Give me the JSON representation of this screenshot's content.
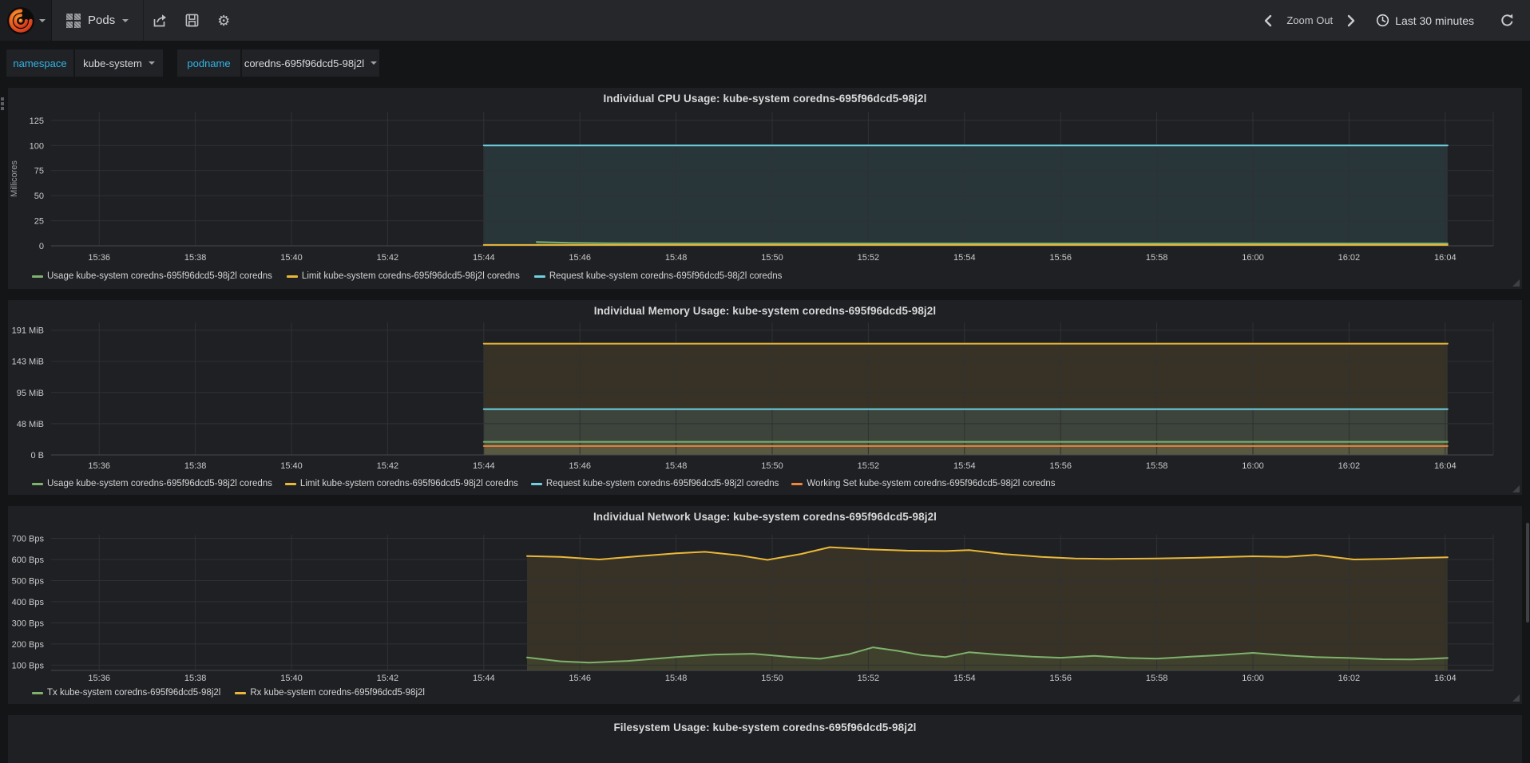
{
  "navbar": {
    "dashboard_title": "Pods",
    "zoom_out_label": "Zoom Out",
    "time_range": "Last 30 minutes",
    "icons": {
      "gear": "⚙"
    }
  },
  "variables": [
    {
      "label": "namespace",
      "value": "kube-system"
    },
    {
      "label": "podname",
      "value": "coredns-695f96dcd5-98j2l"
    }
  ],
  "colors": {
    "green": "#7EB26D",
    "yellow": "#EAB839",
    "cyan": "#6ED0E0",
    "orange": "#EF843C",
    "variable_label_blue": "#33B5E5"
  },
  "chart_data": {
    "time_axis": {
      "xlim": [
        0,
        30
      ],
      "ticks": [
        {
          "t": 1,
          "label": "15:36"
        },
        {
          "t": 3,
          "label": "15:38"
        },
        {
          "t": 5,
          "label": "15:40"
        },
        {
          "t": 7,
          "label": "15:42"
        },
        {
          "t": 9,
          "label": "15:44"
        },
        {
          "t": 11,
          "label": "15:46"
        },
        {
          "t": 13,
          "label": "15:48"
        },
        {
          "t": 15,
          "label": "15:50"
        },
        {
          "t": 17,
          "label": "15:52"
        },
        {
          "t": 19,
          "label": "15:54"
        },
        {
          "t": 21,
          "label": "15:56"
        },
        {
          "t": 23,
          "label": "15:58"
        },
        {
          "t": 25,
          "label": "16:00"
        },
        {
          "t": 27,
          "label": "16:02"
        },
        {
          "t": 29,
          "label": "16:04"
        }
      ]
    },
    "panels": [
      {
        "type": "area",
        "title": "Individual CPU Usage: kube-system coredns-695f96dcd5-98j2l",
        "ylabel": "Millicores",
        "ylim": [
          0,
          133.6
        ],
        "grid": true,
        "legend_position": "bottom",
        "yticks": [
          {
            "v": 0,
            "label": "0"
          },
          {
            "v": 25,
            "label": "25"
          },
          {
            "v": 50,
            "label": "50"
          },
          {
            "v": 75,
            "label": "75"
          },
          {
            "v": 100,
            "label": "100"
          },
          {
            "v": 125,
            "label": "125"
          }
        ],
        "series": [
          {
            "name": "Usage kube-system coredns-695f96dcd5-98j2l coredns",
            "color": "green",
            "fill": true,
            "points": [
              [
                10.1,
                3.8
              ],
              [
                10.8,
                3.0
              ],
              [
                11.6,
                2.6
              ],
              [
                13,
                2.5
              ],
              [
                16,
                2.5
              ],
              [
                20,
                2.4
              ],
              [
                24,
                2.5
              ],
              [
                29.05,
                2.4
              ]
            ]
          },
          {
            "name": "Limit kube-system coredns-695f96dcd5-98j2l coredns",
            "color": "yellow",
            "fill": true,
            "points": [
              [
                9,
                0.9
              ],
              [
                29.05,
                0.9
              ]
            ]
          },
          {
            "name": "Request kube-system coredns-695f96dcd5-98j2l coredns",
            "color": "cyan",
            "fill": true,
            "points": [
              [
                9,
                100
              ],
              [
                29.05,
                100
              ]
            ]
          }
        ]
      },
      {
        "type": "area",
        "title": "Individual Memory Usage: kube-system coredns-695f96dcd5-98j2l",
        "ylabel": "",
        "ylim": [
          0,
          202.5
        ],
        "grid": true,
        "legend_position": "bottom",
        "yticks": [
          {
            "v": 0,
            "label": "0 B"
          },
          {
            "v": 47.7,
            "label": "48 MiB"
          },
          {
            "v": 95.4,
            "label": "95 MiB"
          },
          {
            "v": 143.1,
            "label": "143 MiB"
          },
          {
            "v": 190.7,
            "label": "191 MiB"
          }
        ],
        "series": [
          {
            "name": "Usage kube-system coredns-695f96dcd5-98j2l coredns",
            "color": "green",
            "fill": true,
            "points": [
              [
                9,
                20
              ],
              [
                29.05,
                20
              ]
            ]
          },
          {
            "name": "Limit kube-system coredns-695f96dcd5-98j2l coredns",
            "color": "yellow",
            "fill": true,
            "points": [
              [
                9,
                170
              ],
              [
                29.05,
                170
              ]
            ]
          },
          {
            "name": "Request kube-system coredns-695f96dcd5-98j2l coredns",
            "color": "cyan",
            "fill": true,
            "points": [
              [
                9,
                70
              ],
              [
                29.05,
                70
              ]
            ]
          },
          {
            "name": "Working Set kube-system coredns-695f96dcd5-98j2l coredns",
            "color": "orange",
            "fill": true,
            "points": [
              [
                9,
                13.5
              ],
              [
                29.05,
                13.5
              ]
            ]
          }
        ]
      },
      {
        "type": "area",
        "title": "Individual Network Usage: kube-system coredns-695f96dcd5-98j2l",
        "ylabel": "",
        "ylim": [
          75,
          717
        ],
        "grid": true,
        "legend_position": "bottom",
        "yticks": [
          {
            "v": 100,
            "label": "100 Bps"
          },
          {
            "v": 200,
            "label": "200 Bps"
          },
          {
            "v": 300,
            "label": "300 Bps"
          },
          {
            "v": 400,
            "label": "400 Bps"
          },
          {
            "v": 500,
            "label": "500 Bps"
          },
          {
            "v": 600,
            "label": "600 Bps"
          },
          {
            "v": 700,
            "label": "700 Bps"
          }
        ],
        "series": [
          {
            "name": "Tx kube-system coredns-695f96dcd5-98j2l",
            "color": "green",
            "fill": true,
            "points": [
              [
                9.9,
                136
              ],
              [
                10.6,
                118
              ],
              [
                11.2,
                112
              ],
              [
                12,
                120
              ],
              [
                13,
                138
              ],
              [
                13.8,
                150
              ],
              [
                14.6,
                154
              ],
              [
                15.4,
                138
              ],
              [
                16,
                130
              ],
              [
                16.6,
                152
              ],
              [
                17.1,
                184
              ],
              [
                17.6,
                168
              ],
              [
                18.1,
                148
              ],
              [
                18.6,
                138
              ],
              [
                19.1,
                161
              ],
              [
                19.7,
                150
              ],
              [
                20.4,
                140
              ],
              [
                21,
                135
              ],
              [
                21.7,
                144
              ],
              [
                22.4,
                134
              ],
              [
                23,
                131
              ],
              [
                23.7,
                140
              ],
              [
                24.3,
                147
              ],
              [
                25,
                158
              ],
              [
                25.7,
                146
              ],
              [
                26.3,
                138
              ],
              [
                27,
                134
              ],
              [
                27.7,
                128
              ],
              [
                28.3,
                127
              ],
              [
                28.7,
                130
              ],
              [
                29.05,
                134
              ]
            ]
          },
          {
            "name": "Rx kube-system coredns-695f96dcd5-98j2l",
            "color": "yellow",
            "fill": true,
            "points": [
              [
                9.9,
                616
              ],
              [
                10.6,
                612
              ],
              [
                11.4,
                600
              ],
              [
                12.2,
                615
              ],
              [
                13,
                629
              ],
              [
                13.6,
                636
              ],
              [
                14.3,
                620
              ],
              [
                14.9,
                598
              ],
              [
                15.6,
                626
              ],
              [
                16.2,
                658
              ],
              [
                17,
                648
              ],
              [
                17.8,
                642
              ],
              [
                18.6,
                640
              ],
              [
                19.1,
                644
              ],
              [
                19.8,
                626
              ],
              [
                20.6,
                612
              ],
              [
                21.3,
                605
              ],
              [
                22,
                603
              ],
              [
                23,
                605
              ],
              [
                23.8,
                608
              ],
              [
                24.5,
                612
              ],
              [
                25,
                615
              ],
              [
                25.7,
                612
              ],
              [
                26.3,
                622
              ],
              [
                27.1,
                600
              ],
              [
                27.8,
                603
              ],
              [
                28.4,
                607
              ],
              [
                29.05,
                610
              ]
            ]
          }
        ]
      },
      {
        "type": "area",
        "title": "Filesystem Usage: kube-system coredns-695f96dcd5-98j2l",
        "truncated": true,
        "series": []
      }
    ]
  }
}
